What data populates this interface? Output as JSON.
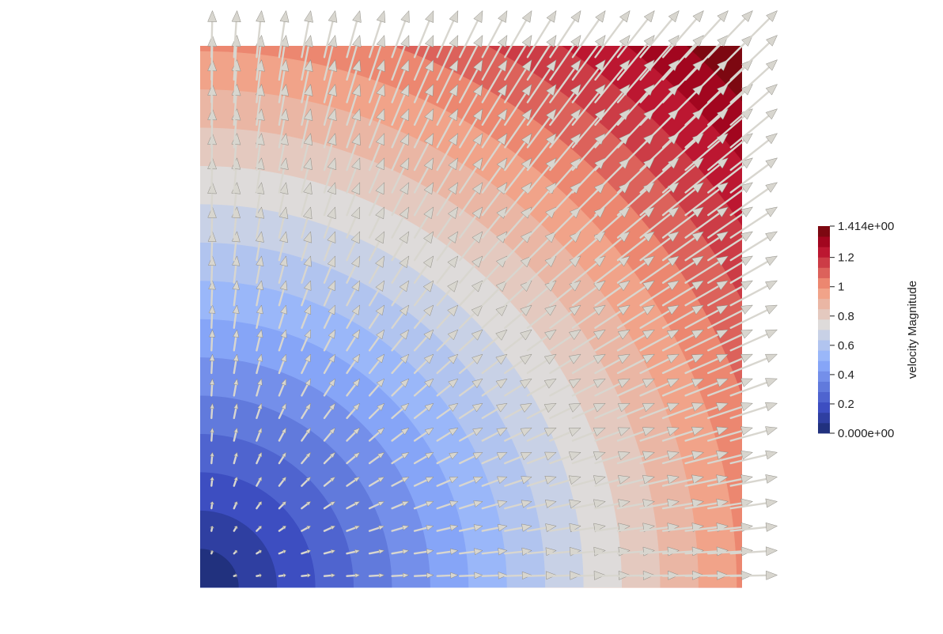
{
  "chart_data": {
    "type": "heatmap",
    "field": "velocity",
    "scalar": "velocity Magnitude",
    "field_formula": {
      "vx": "x",
      "vy": "y",
      "magnitude": "sqrt(x^2 + y^2)"
    },
    "domain": {
      "x": [
        0,
        1
      ],
      "y": [
        0,
        1
      ]
    },
    "glyph_grid": {
      "nx": 24,
      "ny": 24
    },
    "contour_bands": 20,
    "colorbar": {
      "title": "velocity Magnitude",
      "range": [
        0,
        1.414
      ],
      "max_label": "1.414e+00",
      "min_label": "0.000e+00",
      "ticks": [
        {
          "value": 1.2,
          "label": "1.2"
        },
        {
          "value": 1.0,
          "label": "1"
        },
        {
          "value": 0.8,
          "label": "0.8"
        },
        {
          "value": 0.6,
          "label": "0.6"
        },
        {
          "value": 0.4,
          "label": "0.4"
        },
        {
          "value": 0.2,
          "label": "0.2"
        }
      ],
      "colormap": "cool-to-warm (blue-white-red)",
      "colors": [
        "#1a2a6c",
        "#3b4cc0",
        "#8fb0fe",
        "#dddddd",
        "#f49a7b",
        "#b40426",
        "#6b0a0a"
      ]
    },
    "glyph_color": "#d8d6cf",
    "background": "#ffffff"
  }
}
